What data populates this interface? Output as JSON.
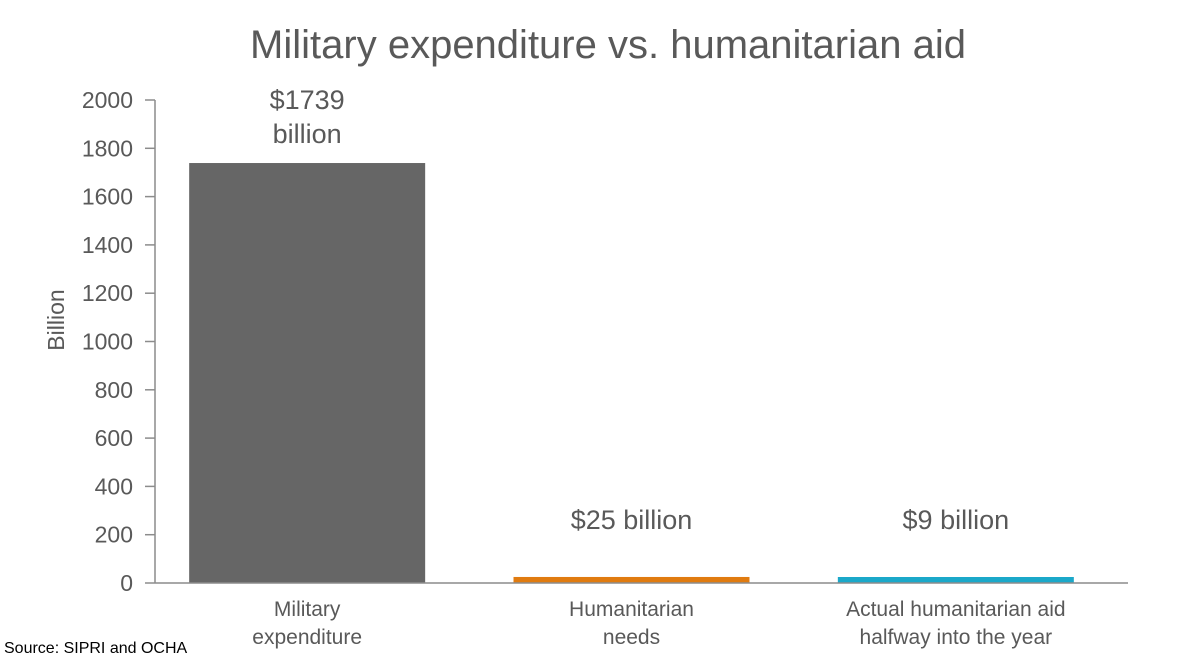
{
  "chart_data": {
    "type": "bar",
    "title": "Military expenditure vs. humanitarian aid",
    "ylabel": "Billion",
    "xlabel": "",
    "ylim": [
      0,
      2000
    ],
    "yticks": [
      0,
      200,
      400,
      600,
      800,
      1000,
      1200,
      1400,
      1600,
      1800,
      2000
    ],
    "grid": false,
    "legend": "none",
    "categories": [
      [
        "Military",
        "expenditure"
      ],
      [
        "Humanitarian",
        "needs"
      ],
      [
        "Actual humanitarian aid",
        "halfway into the year"
      ]
    ],
    "values": [
      1739,
      25,
      9
    ],
    "data_labels": [
      [
        "$1739",
        "billion"
      ],
      [
        "$25 billion"
      ],
      [
        "$9 billion"
      ]
    ],
    "colors": [
      "#666666",
      "#e07b10",
      "#1ba8c9"
    ],
    "source": "Source: SIPRI and OCHA"
  }
}
